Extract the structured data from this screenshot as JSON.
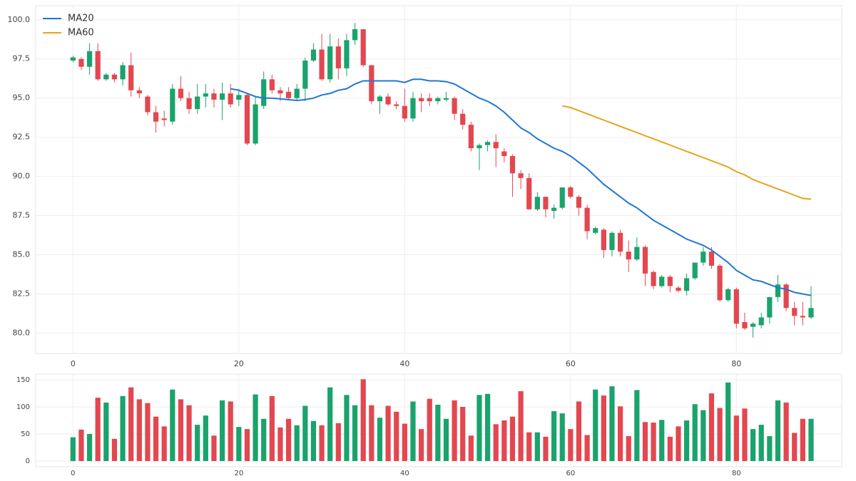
{
  "chart_data": [
    {
      "type": "candlestick",
      "x": [
        0,
        1,
        2,
        3,
        4,
        5,
        6,
        7,
        8,
        9,
        10,
        11,
        12,
        13,
        14,
        15,
        16,
        17,
        18,
        19,
        20,
        21,
        22,
        23,
        24,
        25,
        26,
        27,
        28,
        29,
        30,
        31,
        32,
        33,
        34,
        35,
        36,
        37,
        38,
        39,
        40,
        41,
        42,
        43,
        44,
        45,
        46,
        47,
        48,
        49,
        50,
        51,
        52,
        53,
        54,
        55,
        56,
        57,
        58,
        59,
        60,
        61,
        62,
        63,
        64,
        65,
        66,
        67,
        68,
        69,
        70,
        71,
        72,
        73,
        74,
        75,
        76,
        77,
        78,
        79,
        80,
        81,
        82,
        83,
        84,
        85,
        86,
        87,
        88,
        89
      ],
      "open": [
        97.4,
        97.5,
        97.0,
        98.0,
        96.2,
        96.5,
        96.2,
        97.1,
        95.5,
        95.1,
        94.1,
        93.7,
        93.5,
        95.6,
        95.0,
        94.3,
        95.1,
        95.3,
        94.9,
        95.3,
        94.9,
        95.2,
        92.1,
        94.5,
        96.2,
        95.5,
        95.4,
        95.0,
        95.6,
        97.4,
        98.1,
        96.2,
        98.3,
        96.9,
        98.7,
        99.4,
        97.1,
        94.8,
        95.1,
        94.6,
        94.5,
        93.7,
        95.0,
        95.0,
        94.8,
        94.9,
        95.0,
        94.0,
        93.3,
        91.8,
        92.0,
        92.2,
        91.6,
        91.3,
        90.2,
        89.9,
        87.9,
        88.7,
        87.8,
        88.0,
        89.3,
        88.7,
        88.0,
        86.4,
        86.6,
        85.3,
        86.4,
        85.2,
        84.7,
        85.5,
        83.9,
        83.0,
        83.6,
        82.9,
        82.7,
        83.5,
        84.5,
        85.2,
        84.3,
        82.1,
        82.8,
        80.7,
        80.4,
        80.5,
        81.0,
        82.3,
        83.1,
        81.6,
        81.1,
        81.0
      ],
      "high": [
        97.7,
        97.6,
        98.5,
        98.5,
        96.6,
        96.6,
        97.3,
        97.9,
        95.7,
        95.2,
        94.5,
        94.2,
        95.9,
        96.4,
        95.4,
        95.9,
        95.9,
        95.6,
        96.0,
        95.9,
        95.6,
        95.3,
        95.1,
        96.7,
        96.5,
        95.7,
        95.7,
        95.9,
        97.6,
        98.5,
        99.1,
        99.1,
        98.8,
        99.1,
        99.8,
        99.4,
        97.1,
        95.2,
        95.3,
        94.8,
        95.6,
        95.4,
        95.3,
        95.3,
        95.1,
        95.4,
        95.1,
        94.3,
        93.5,
        92.1,
        92.3,
        92.7,
        91.8,
        91.4,
        90.4,
        90.2,
        89.0,
        88.7,
        88.2,
        89.3,
        89.4,
        88.8,
        88.2,
        86.8,
        86.7,
        86.5,
        86.6,
        85.9,
        86.1,
        85.6,
        84.0,
        83.7,
        83.7,
        83.0,
        83.8,
        84.5,
        85.5,
        85.5,
        84.4,
        82.9,
        82.9,
        81.3,
        80.7,
        81.3,
        82.3,
        83.7,
        83.2,
        82.0,
        82.0,
        83.0
      ],
      "low": [
        97.3,
        96.8,
        96.5,
        96.1,
        96.1,
        96.0,
        95.8,
        95.1,
        95.0,
        93.9,
        92.8,
        93.2,
        93.3,
        94.8,
        94.0,
        94.0,
        94.4,
        94.4,
        93.6,
        94.4,
        94.5,
        92.0,
        92.0,
        94.3,
        95.3,
        94.8,
        94.9,
        94.8,
        94.8,
        97.3,
        96.1,
        96.0,
        96.2,
        96.4,
        98.4,
        97.0,
        94.6,
        94.0,
        94.5,
        94.3,
        93.5,
        93.5,
        94.1,
        94.5,
        94.6,
        94.8,
        93.6,
        93.0,
        91.6,
        90.4,
        91.6,
        90.6,
        90.9,
        88.7,
        89.2,
        87.9,
        87.8,
        87.4,
        87.3,
        87.9,
        88.6,
        87.5,
        86.0,
        86.3,
        84.8,
        84.9,
        84.9,
        83.9,
        84.6,
        83.0,
        82.8,
        82.9,
        82.6,
        82.6,
        82.4,
        83.4,
        84.3,
        84.1,
        82.0,
        82.0,
        80.3,
        80.2,
        79.7,
        80.3,
        80.6,
        82.0,
        81.4,
        80.5,
        80.5,
        80.9
      ],
      "close": [
        97.6,
        97.0,
        98.0,
        96.2,
        96.5,
        96.2,
        97.1,
        95.5,
        95.3,
        94.1,
        93.5,
        93.6,
        95.6,
        95.0,
        94.3,
        95.1,
        95.3,
        94.9,
        95.3,
        94.6,
        95.2,
        92.1,
        94.6,
        96.2,
        95.5,
        95.3,
        95.0,
        95.6,
        97.4,
        98.1,
        96.2,
        98.3,
        96.9,
        98.7,
        99.4,
        97.1,
        94.8,
        95.1,
        94.6,
        94.5,
        93.7,
        95.0,
        94.8,
        94.8,
        95.0,
        95.0,
        94.0,
        93.3,
        91.8,
        92.0,
        92.2,
        91.8,
        91.3,
        90.2,
        89.9,
        87.9,
        88.7,
        87.9,
        88.0,
        89.3,
        88.7,
        88.0,
        86.5,
        86.7,
        85.3,
        86.4,
        85.2,
        84.7,
        85.5,
        83.8,
        83.0,
        83.6,
        83.0,
        82.7,
        83.5,
        84.5,
        85.2,
        84.3,
        82.1,
        82.8,
        80.6,
        80.3,
        80.6,
        81.0,
        82.3,
        83.1,
        81.6,
        81.1,
        81.0,
        81.6
      ],
      "up_color": "#1aa36c",
      "down_color": "#e3474f",
      "series": [
        {
          "name": "MA20",
          "color": "#1f78d1",
          "values": [
            null,
            null,
            null,
            null,
            null,
            null,
            null,
            null,
            null,
            null,
            null,
            null,
            null,
            null,
            null,
            null,
            null,
            null,
            null,
            95.6,
            95.5,
            95.3,
            95.1,
            95.0,
            95.0,
            94.95,
            94.9,
            94.85,
            94.9,
            95.0,
            95.2,
            95.3,
            95.5,
            95.6,
            95.9,
            96.1,
            96.1,
            96.1,
            96.1,
            96.1,
            96.0,
            96.2,
            96.2,
            96.1,
            96.1,
            96.05,
            95.9,
            95.6,
            95.3,
            95.0,
            94.8,
            94.5,
            94.1,
            93.6,
            93.1,
            92.8,
            92.4,
            92.1,
            91.8,
            91.6,
            91.3,
            90.9,
            90.5,
            90.0,
            89.5,
            89.1,
            88.7,
            88.3,
            88.0,
            87.6,
            87.2,
            86.9,
            86.6,
            86.3,
            86.0,
            85.8,
            85.6,
            85.3,
            84.9,
            84.5,
            84.0,
            83.7,
            83.4,
            83.3,
            83.1,
            82.9,
            82.8,
            82.6,
            82.5,
            82.4
          ]
        },
        {
          "name": "MA60",
          "color": "#e6a31e",
          "values": [
            null,
            null,
            null,
            null,
            null,
            null,
            null,
            null,
            null,
            null,
            null,
            null,
            null,
            null,
            null,
            null,
            null,
            null,
            null,
            null,
            null,
            null,
            null,
            null,
            null,
            null,
            null,
            null,
            null,
            null,
            null,
            null,
            null,
            null,
            null,
            null,
            null,
            null,
            null,
            null,
            null,
            null,
            null,
            null,
            null,
            null,
            null,
            null,
            null,
            null,
            null,
            null,
            null,
            null,
            null,
            null,
            null,
            null,
            null,
            94.5,
            94.4,
            94.2,
            94.0,
            93.8,
            93.6,
            93.4,
            93.2,
            93.0,
            92.8,
            92.6,
            92.4,
            92.2,
            92.0,
            91.8,
            91.6,
            91.4,
            91.2,
            91.0,
            90.8,
            90.6,
            90.3,
            90.1,
            89.8,
            89.6,
            89.4,
            89.2,
            89.0,
            88.8,
            88.6,
            88.55
          ]
        }
      ],
      "xlim": [
        -4.5,
        92.7
      ],
      "xticks": [
        0,
        20,
        40,
        60,
        80
      ],
      "ylim": [
        78.7,
        100.9
      ],
      "yticks": [
        {
          "value": 80,
          "label": "80.0"
        },
        82.5,
        {
          "value": 85,
          "label": "85.0"
        },
        87.5,
        {
          "value": 90,
          "label": "90.0"
        },
        92.5,
        {
          "value": 95,
          "label": "95.0"
        },
        97.5,
        {
          "value": 100,
          "label": "100.0"
        }
      ],
      "grid": true,
      "legend": "upper-left"
    },
    {
      "type": "bar",
      "values": [
        44,
        58,
        50,
        117,
        108,
        41,
        120,
        136,
        114,
        107,
        82,
        64,
        132,
        114,
        103,
        67,
        84,
        47,
        112,
        110,
        63,
        59,
        123,
        78,
        120,
        62,
        78,
        66,
        102,
        74,
        66,
        136,
        70,
        122,
        103,
        151,
        103,
        80,
        102,
        91,
        69,
        110,
        59,
        115,
        104,
        78,
        112,
        100,
        47,
        122,
        124,
        68,
        75,
        82,
        129,
        53,
        53,
        45,
        92,
        88,
        59,
        110,
        48,
        132,
        121,
        138,
        101,
        46,
        131,
        72,
        71,
        76,
        45,
        64,
        75,
        105,
        94,
        125,
        98,
        145,
        84,
        97,
        59,
        67,
        46,
        112,
        108,
        52,
        78,
        78
      ],
      "xlim": [
        -4.5,
        92.7
      ],
      "xticks": [
        0,
        20,
        40,
        60,
        80
      ],
      "ylim": [
        -10.5,
        160.5
      ],
      "yticks": [
        0,
        50,
        100,
        150
      ],
      "grid": true
    }
  ]
}
